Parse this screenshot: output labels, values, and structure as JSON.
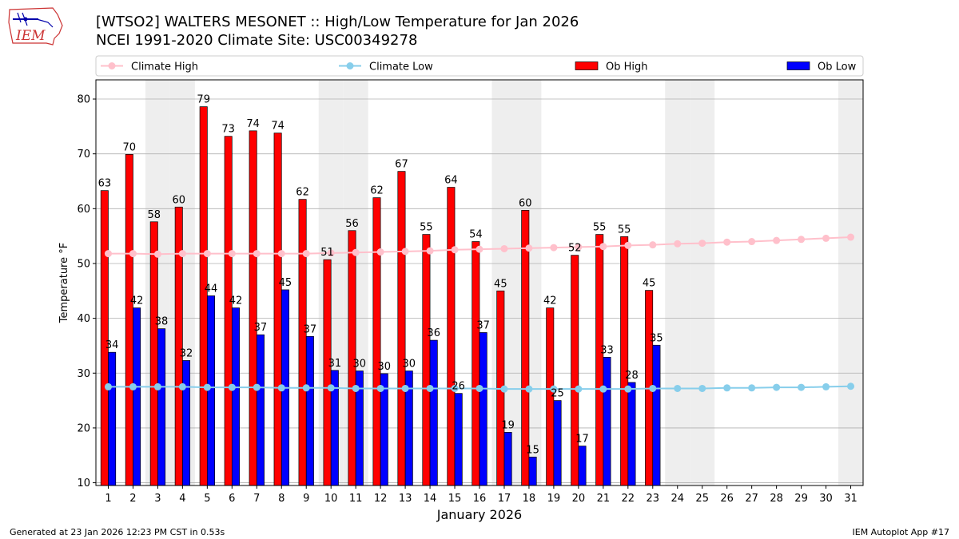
{
  "header": {
    "title_line1": "[WTSO2] WALTERS MESONET :: High/Low Temperature for Jan 2026",
    "title_line2": "NCEI 1991-2020 Climate Site: USC00349278",
    "logo_text": "IEM"
  },
  "footer": {
    "left": "Generated at 23 Jan 2026 12:23 PM CST in 0.53s",
    "right": "IEM Autoplot App #17"
  },
  "chart_data": {
    "type": "bar",
    "xlabel": "January 2026",
    "ylabel": "Temperature °F",
    "ylim": [
      9.5,
      83.5
    ],
    "yticks": [
      10,
      20,
      30,
      40,
      50,
      60,
      70,
      80
    ],
    "categories": [
      "1",
      "2",
      "3",
      "4",
      "5",
      "6",
      "7",
      "8",
      "9",
      "10",
      "11",
      "12",
      "13",
      "14",
      "15",
      "16",
      "17",
      "18",
      "19",
      "20",
      "21",
      "22",
      "23",
      "24",
      "25",
      "26",
      "27",
      "28",
      "29",
      "30",
      "31"
    ],
    "weekend_days": [
      3,
      4,
      10,
      11,
      17,
      18,
      24,
      25,
      31
    ],
    "grid": "horizontal",
    "legend_placement": "top",
    "legend": [
      {
        "label": "Climate High",
        "kind": "line",
        "color": "#FFC0CB"
      },
      {
        "label": "Climate Low",
        "kind": "line",
        "color": "#87CEEB"
      },
      {
        "label": "Ob High",
        "kind": "bar",
        "color": "#FF0000"
      },
      {
        "label": "Ob Low",
        "kind": "bar",
        "color": "#0000FF"
      }
    ],
    "series": [
      {
        "name": "Ob High",
        "kind": "bar",
        "color": "#FF0000",
        "values": [
          63.3,
          69.9,
          57.6,
          60.3,
          78.6,
          73.2,
          74.2,
          73.8,
          61.7,
          50.7,
          56.0,
          62.0,
          66.8,
          55.3,
          63.9,
          54.0,
          45.0,
          59.7,
          41.9,
          51.5,
          55.3,
          54.9,
          45.1,
          null,
          null,
          null,
          null,
          null,
          null,
          null,
          null
        ],
        "labels": [
          "63",
          "70",
          "58",
          "60",
          "79",
          "73",
          "74",
          "74",
          "62",
          "51",
          "56",
          "62",
          "67",
          "55",
          "64",
          "54",
          "45",
          "60",
          "42",
          "52",
          "55",
          "55",
          "45",
          "",
          "",
          "",
          "",
          "",
          "",
          "",
          ""
        ]
      },
      {
        "name": "Ob Low",
        "kind": "bar",
        "color": "#0000FF",
        "values": [
          33.8,
          41.9,
          38.1,
          32.3,
          44.1,
          41.9,
          37.0,
          45.2,
          36.7,
          30.5,
          30.4,
          29.9,
          30.4,
          36.0,
          26.3,
          37.4,
          19.2,
          14.7,
          25.0,
          16.7,
          32.9,
          28.3,
          35.1,
          null,
          null,
          null,
          null,
          null,
          null,
          null,
          null
        ],
        "labels": [
          "34",
          "42",
          "38",
          "32",
          "44",
          "42",
          "37",
          "45",
          "37",
          "31",
          "30",
          "30",
          "30",
          "36",
          "26",
          "37",
          "19",
          "15",
          "25",
          "17",
          "33",
          "28",
          "35",
          "",
          "",
          "",
          "",
          "",
          "",
          "",
          ""
        ]
      },
      {
        "name": "Climate High",
        "kind": "line",
        "color": "#FFC0CB",
        "values": [
          51.8,
          51.8,
          51.7,
          51.8,
          51.8,
          51.8,
          51.8,
          51.8,
          51.8,
          51.9,
          52.0,
          52.1,
          52.2,
          52.3,
          52.5,
          52.6,
          52.7,
          52.8,
          52.9,
          53.0,
          53.1,
          53.3,
          53.4,
          53.6,
          53.7,
          53.9,
          54.0,
          54.2,
          54.4,
          54.6,
          54.8
        ]
      },
      {
        "name": "Climate Low",
        "kind": "line",
        "color": "#87CEEB",
        "values": [
          27.5,
          27.5,
          27.5,
          27.5,
          27.4,
          27.4,
          27.4,
          27.3,
          27.3,
          27.3,
          27.2,
          27.2,
          27.2,
          27.2,
          27.2,
          27.2,
          27.1,
          27.1,
          27.1,
          27.1,
          27.1,
          27.1,
          27.2,
          27.2,
          27.2,
          27.3,
          27.3,
          27.4,
          27.4,
          27.5,
          27.6
        ]
      }
    ]
  }
}
